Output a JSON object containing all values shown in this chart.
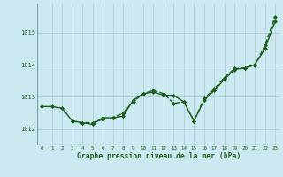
{
  "xlabel": "Graphe pression niveau de la mer (hPa)",
  "background_color": "#cce8f0",
  "grid_color": "#aaccd8",
  "line_color": "#1a5c1a",
  "ylim": [
    1011.5,
    1015.9
  ],
  "yticks": [
    1012,
    1013,
    1014,
    1015
  ],
  "xticks": [
    0,
    1,
    2,
    3,
    4,
    5,
    6,
    7,
    8,
    9,
    10,
    11,
    12,
    13,
    14,
    15,
    16,
    17,
    18,
    19,
    20,
    21,
    22,
    23
  ],
  "series": [
    {
      "y": [
        1012.7,
        1012.7,
        1012.65,
        1012.25,
        1012.2,
        1012.15,
        1012.35,
        1012.35,
        1012.4,
        1012.9,
        1013.1,
        1013.15,
        1013.05,
        1013.05,
        1012.85,
        1012.25,
        1012.9,
        1013.2,
        1013.55,
        1013.85,
        1013.9,
        1014.0,
        1014.5,
        1015.35
      ],
      "linestyle": "-",
      "linewidth": 1.0,
      "marker": "D",
      "markersize": 2.0,
      "has_markers": true
    },
    {
      "y": [
        1012.7,
        null,
        null,
        null,
        null,
        null,
        null,
        null,
        null,
        null,
        null,
        null,
        null,
        null,
        null,
        null,
        null,
        null,
        null,
        null,
        null,
        1014.0,
        null,
        1015.55
      ],
      "linestyle": "-",
      "linewidth": 1.2,
      "marker": null,
      "markersize": 0,
      "has_markers": false
    },
    {
      "y": [
        1012.7,
        null,
        null,
        null,
        null,
        null,
        null,
        null,
        null,
        null,
        1013.1,
        null,
        null,
        null,
        null,
        1012.25,
        null,
        null,
        null,
        null,
        null,
        null,
        null,
        1015.55
      ],
      "linestyle": "-",
      "linewidth": 1.0,
      "marker": null,
      "markersize": 0,
      "has_markers": false
    },
    {
      "y": [
        1012.7,
        null,
        null,
        null,
        null,
        null,
        null,
        null,
        null,
        null,
        1013.1,
        null,
        null,
        null,
        null,
        1012.25,
        null,
        null,
        null,
        null,
        null,
        1014.0,
        null,
        1015.35
      ],
      "linestyle": "-",
      "linewidth": 1.0,
      "marker": null,
      "markersize": 0,
      "has_markers": false
    },
    {
      "y": [
        null,
        null,
        null,
        1012.25,
        1012.2,
        1012.2,
        1012.3,
        1012.35,
        1012.5,
        1012.85,
        1013.1,
        1013.2,
        1013.1,
        1012.8,
        1012.85,
        1012.25,
        1012.95,
        1013.25,
        1013.6,
        1013.88,
        1013.9,
        1013.98,
        1014.6,
        1015.5
      ],
      "linestyle": "--",
      "linewidth": 1.0,
      "marker": "D",
      "markersize": 2.0,
      "has_markers": true
    }
  ]
}
